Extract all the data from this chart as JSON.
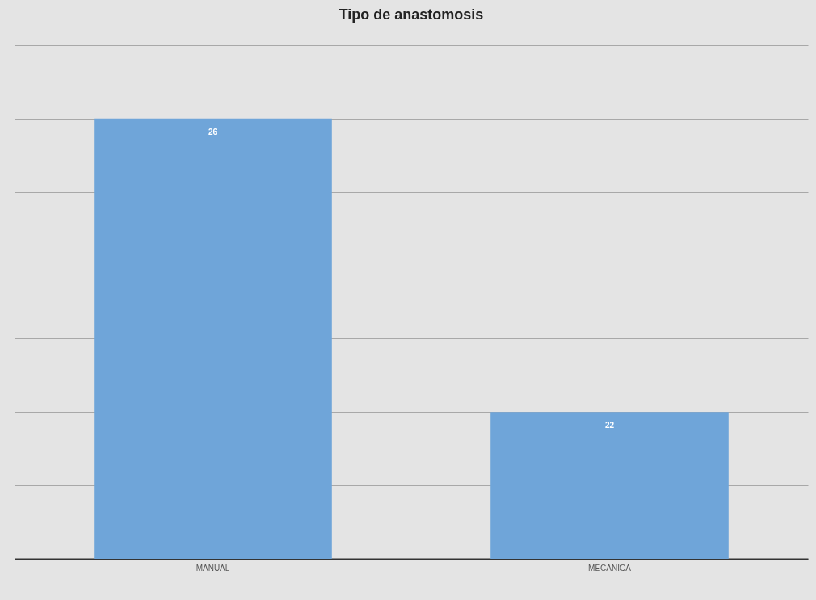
{
  "chart_data": {
    "type": "bar",
    "title": "Tipo de anastomosis",
    "categories": [
      "MANUAL",
      "MECANICA"
    ],
    "values": [
      26,
      22
    ],
    "color": "#6fa5d9",
    "ylim": [
      20,
      27
    ],
    "yticks": [
      20,
      21,
      22,
      23,
      24,
      25,
      26,
      27
    ],
    "tick_labels": "x",
    "grid": "y",
    "data_labels": true
  }
}
